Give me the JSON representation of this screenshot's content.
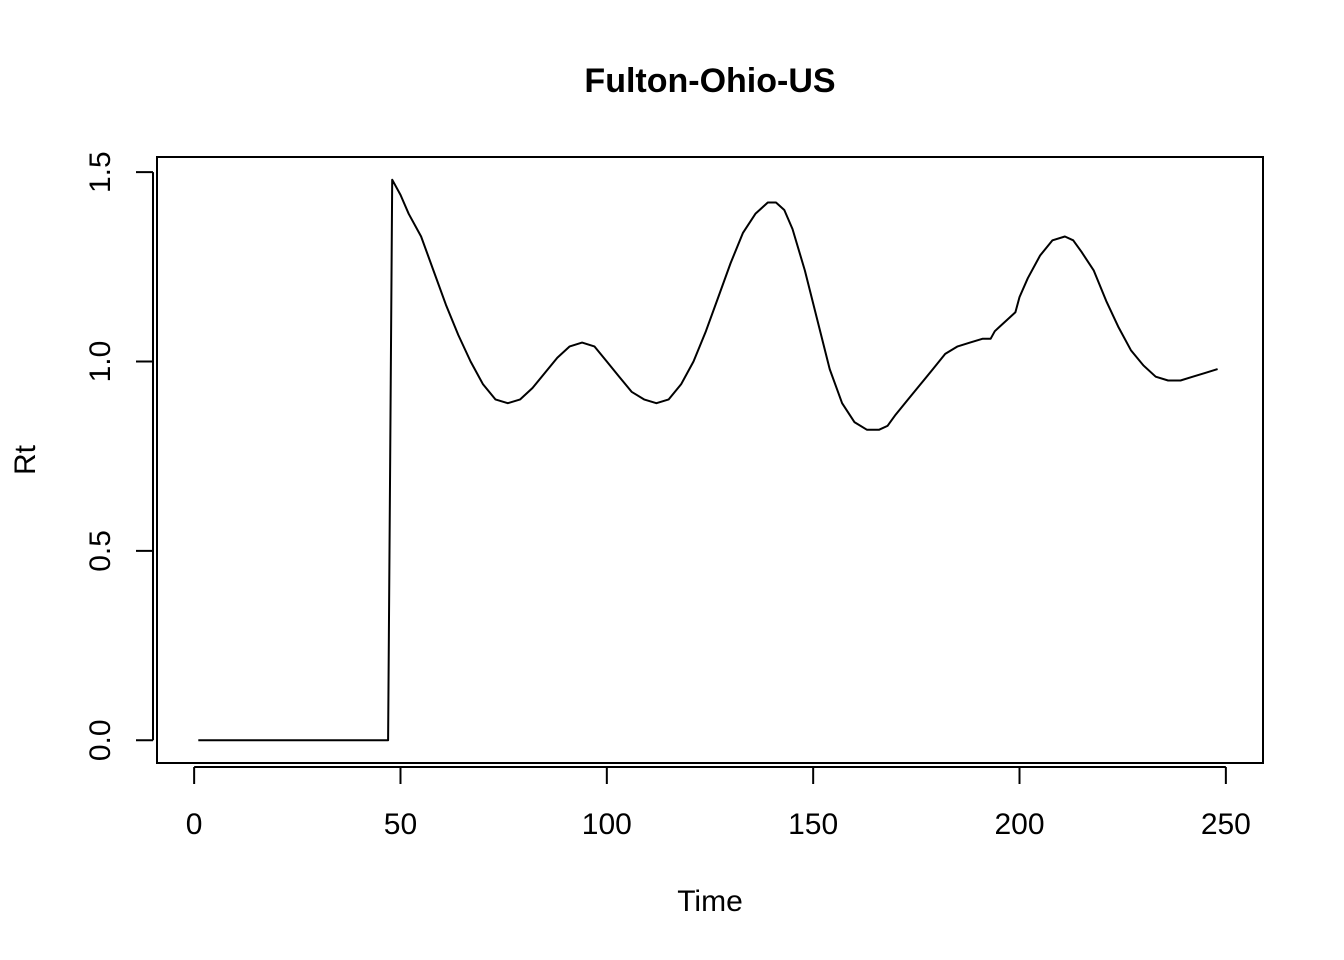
{
  "chart_data": {
    "type": "line",
    "title": "Fulton-Ohio-US",
    "xlabel": "Time",
    "ylabel": "Rt",
    "xlim": [
      -9.0,
      259.0
    ],
    "ylim": [
      -0.06,
      1.54
    ],
    "x_ticks": [
      0,
      50,
      100,
      150,
      200,
      250
    ],
    "y_ticks": [
      0.0,
      0.5,
      1.0,
      1.5
    ],
    "x_tick_labels": [
      "0",
      "50",
      "100",
      "150",
      "200",
      "250"
    ],
    "y_tick_labels": [
      "0.0",
      "0.5",
      "1.0",
      "1.5"
    ],
    "grid": false,
    "legend": "none",
    "line_color": "#000000",
    "series": [
      {
        "x": [
          1,
          10,
          20,
          30,
          40,
          47,
          47.5,
          48,
          50,
          52,
          55,
          58,
          61,
          64,
          67,
          70,
          73,
          76,
          79,
          82,
          85,
          88,
          91,
          94,
          97,
          100,
          103,
          106,
          109,
          112,
          115,
          118,
          121,
          124,
          127,
          130,
          133,
          136,
          139,
          141,
          143,
          145,
          148,
          151,
          154,
          157,
          160,
          163,
          166,
          168,
          170,
          173,
          176,
          179,
          182,
          185,
          188,
          191,
          193,
          194,
          195,
          197,
          199,
          200,
          202,
          205,
          208,
          211,
          213,
          215,
          218,
          221,
          224,
          227,
          230,
          233,
          236,
          239,
          242,
          245,
          248
        ],
        "y": [
          0.0,
          0.0,
          0.0,
          0.0,
          0.0,
          0.0,
          0.75,
          1.48,
          1.44,
          1.39,
          1.33,
          1.24,
          1.15,
          1.07,
          1.0,
          0.94,
          0.9,
          0.89,
          0.9,
          0.93,
          0.97,
          1.01,
          1.04,
          1.05,
          1.04,
          1.0,
          0.96,
          0.92,
          0.9,
          0.89,
          0.9,
          0.94,
          1.0,
          1.08,
          1.17,
          1.26,
          1.34,
          1.39,
          1.42,
          1.42,
          1.4,
          1.35,
          1.24,
          1.11,
          0.98,
          0.89,
          0.84,
          0.82,
          0.82,
          0.83,
          0.86,
          0.9,
          0.94,
          0.98,
          1.02,
          1.04,
          1.05,
          1.06,
          1.06,
          1.08,
          1.09,
          1.11,
          1.13,
          1.17,
          1.22,
          1.28,
          1.32,
          1.33,
          1.32,
          1.29,
          1.24,
          1.16,
          1.09,
          1.03,
          0.99,
          0.96,
          0.95,
          0.95,
          0.96,
          0.97,
          0.98
        ]
      }
    ]
  }
}
